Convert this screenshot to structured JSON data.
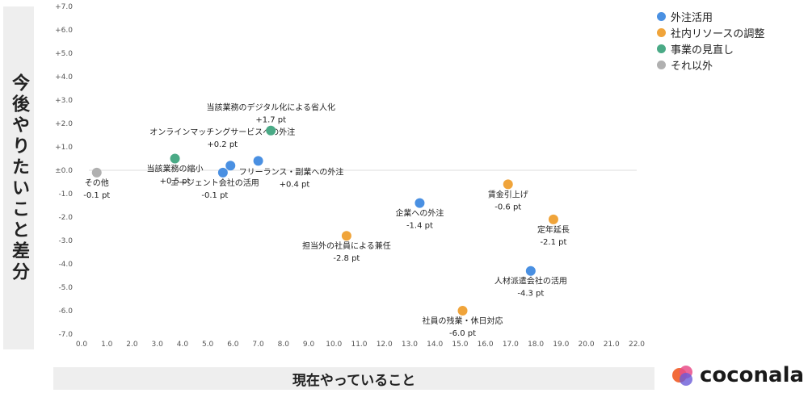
{
  "chart_data": {
    "type": "scatter",
    "xlabel": "現在やっていること",
    "ylabel": "今後やりたいこと差分",
    "xlim": [
      0,
      22
    ],
    "ylim": [
      -7.5,
      7.2
    ],
    "x_ticks": [
      "0.0",
      "1.0",
      "2.0",
      "3.0",
      "4.0",
      "5.0",
      "6.0",
      "7.0",
      "8.0",
      "9.0",
      "10.0",
      "11.0",
      "12.0",
      "13.0",
      "14.0",
      "15.0",
      "16.0",
      "17.0",
      "18.0",
      "19.0",
      "20.0",
      "21.0",
      "22.0"
    ],
    "y_ticks": [
      {
        "v": 7,
        "t": "+7.0"
      },
      {
        "v": 6,
        "t": "+6.0"
      },
      {
        "v": 5,
        "t": "+5.0"
      },
      {
        "v": 4,
        "t": "+4.0"
      },
      {
        "v": 3,
        "t": "+3.0"
      },
      {
        "v": 2,
        "t": "+2.0"
      },
      {
        "v": 1,
        "t": "+1.0"
      },
      {
        "v": 0,
        "t": "±0.0"
      },
      {
        "v": -1,
        "t": "-1.0"
      },
      {
        "v": -2,
        "t": "-2.0"
      },
      {
        "v": -3,
        "t": "-3.0"
      },
      {
        "v": -4,
        "t": "-4.0"
      },
      {
        "v": -5,
        "t": "-5.0"
      },
      {
        "v": -6,
        "t": "-6.0"
      },
      {
        "v": -7,
        "t": "-7.0"
      }
    ],
    "grid": "zero-line only",
    "legend_position": "top-right",
    "series": [
      {
        "name": "外注活用",
        "color": "#4a90e2"
      },
      {
        "name": "社内リソースの調整",
        "color": "#f0a43a"
      },
      {
        "name": "事業の見直し",
        "color": "#4aaa86"
      },
      {
        "name": "それ以外",
        "color": "#b0b0b0"
      }
    ],
    "points": [
      {
        "series": 0,
        "x": 5.6,
        "y": -0.1,
        "label": [
          "エージェント会社の活用",
          "-0.1 pt"
        ],
        "anchor": "below",
        "dx": -10
      },
      {
        "series": 0,
        "x": 5.9,
        "y": 0.2,
        "label": [
          "オンラインマッチングサービスへの外注",
          "+0.2 pt"
        ],
        "anchor": "above-far",
        "dx": -10
      },
      {
        "series": 0,
        "x": 7.0,
        "y": 0.4,
        "label": [
          "フリーランス・副業への外注",
          "+0.4 pt"
        ],
        "anchor": "right-below",
        "dx": 0
      },
      {
        "series": 0,
        "x": 13.4,
        "y": -1.4,
        "label": [
          "企業への外注",
          "-1.4 pt"
        ],
        "anchor": "below",
        "dx": 0
      },
      {
        "series": 0,
        "x": 17.8,
        "y": -4.3,
        "label": [
          "人材派遣会社の活用",
          "-4.3 pt"
        ],
        "anchor": "below",
        "dx": 0
      },
      {
        "series": 1,
        "x": 10.5,
        "y": -2.8,
        "label": [
          "担当外の社員による兼任",
          "-2.8 pt"
        ],
        "anchor": "below",
        "dx": 0
      },
      {
        "series": 1,
        "x": 15.1,
        "y": -6.0,
        "label": [
          "社員の残業・休日対応",
          "-6.0 pt"
        ],
        "anchor": "below",
        "dx": 0
      },
      {
        "series": 1,
        "x": 16.9,
        "y": -0.6,
        "label": [
          "賃金引上げ",
          "-0.6 pt"
        ],
        "anchor": "below",
        "dx": 0
      },
      {
        "series": 1,
        "x": 18.7,
        "y": -2.1,
        "label": [
          "定年延長",
          "-2.1 pt"
        ],
        "anchor": "below",
        "dx": 0
      },
      {
        "series": 2,
        "x": 7.5,
        "y": 1.7,
        "label": [
          "当該業務のデジタル化による省人化",
          "+1.7 pt"
        ],
        "anchor": "above",
        "dx": 0
      },
      {
        "series": 2,
        "x": 3.7,
        "y": 0.5,
        "label": [
          "当該業務の縮小",
          "+0.5 pt"
        ],
        "anchor": "below",
        "dx": 0
      },
      {
        "series": 3,
        "x": 0.6,
        "y": -0.1,
        "label": [
          "その他",
          "-0.1 pt"
        ],
        "anchor": "below",
        "dx": 0
      }
    ]
  },
  "branding": {
    "logo_text": "coconala"
  }
}
